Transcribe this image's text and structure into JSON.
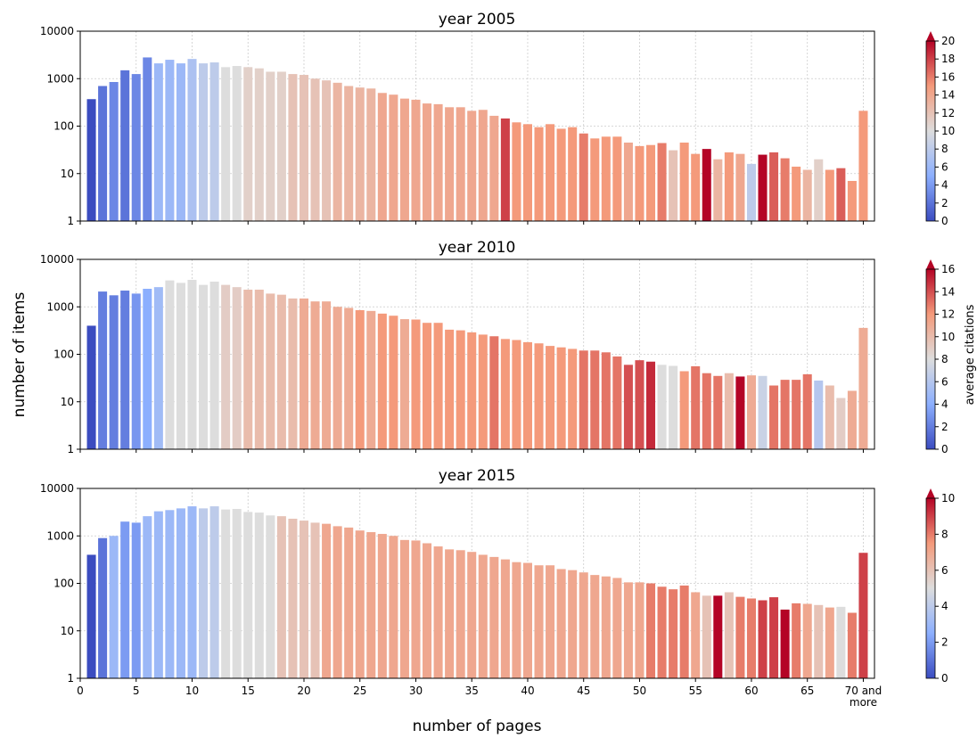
{
  "figure": {
    "ylabel": "number of items",
    "xlabel": "number of pages",
    "colorbar_label": "average citations",
    "x_last_tick_lines": [
      "70 and",
      "more"
    ]
  },
  "chart_data": [
    {
      "type": "bar",
      "title": "year 2005",
      "y_scale": "log",
      "ylim": [
        1,
        10000
      ],
      "y_ticks": [
        "1",
        "10",
        "100",
        "1000",
        "10000"
      ],
      "xlim": [
        0,
        71
      ],
      "x_ticks": [
        "0",
        "5",
        "10",
        "15",
        "20",
        "25",
        "30",
        "35",
        "40",
        "45",
        "50",
        "55",
        "60",
        "65",
        "70 and more"
      ],
      "grid": true,
      "colormap": "coolwarm",
      "color_range": [
        0,
        20
      ],
      "colorbar_ticks": [
        0,
        2,
        4,
        6,
        8,
        10,
        12,
        14,
        16,
        18,
        20
      ],
      "pages": [
        1,
        2,
        3,
        4,
        5,
        6,
        7,
        8,
        9,
        10,
        11,
        12,
        13,
        14,
        15,
        16,
        17,
        18,
        19,
        20,
        21,
        22,
        23,
        24,
        25,
        26,
        27,
        28,
        29,
        30,
        31,
        32,
        33,
        34,
        35,
        36,
        37,
        38,
        39,
        40,
        41,
        42,
        43,
        44,
        45,
        46,
        47,
        48,
        49,
        50,
        51,
        52,
        53,
        54,
        55,
        56,
        57,
        58,
        59,
        60,
        61,
        62,
        63,
        64,
        65,
        66,
        67,
        68,
        69,
        70
      ],
      "items": [
        370,
        700,
        850,
        1500,
        1250,
        2800,
        2100,
        2500,
        2100,
        2600,
        2100,
        2200,
        1750,
        1850,
        1750,
        1650,
        1400,
        1400,
        1250,
        1200,
        1000,
        920,
        820,
        700,
        650,
        620,
        500,
        460,
        380,
        360,
        300,
        290,
        250,
        250,
        210,
        220,
        165,
        145,
        120,
        110,
        95,
        110,
        88,
        95,
        70,
        55,
        60,
        60,
        45,
        38,
        40,
        44,
        31,
        45,
        26,
        33,
        20,
        28,
        26,
        16,
        25,
        28,
        21,
        14,
        12,
        20,
        12,
        13,
        7,
        210
      ],
      "avg_citations": [
        0,
        2,
        3,
        2,
        3,
        3,
        6,
        6,
        6,
        7,
        8,
        8,
        10,
        10,
        11,
        11,
        11,
        11,
        12,
        12,
        12,
        12,
        13,
        13,
        13,
        13,
        14,
        14,
        14,
        14,
        14,
        14,
        14,
        14,
        14,
        14,
        14,
        18,
        15,
        15,
        15,
        15,
        15,
        15,
        16,
        15,
        15,
        15,
        14,
        15,
        15,
        16,
        12,
        15,
        15,
        21,
        13,
        15,
        14,
        8,
        21,
        17,
        16,
        15,
        13,
        11,
        15,
        17,
        15,
        15
      ]
    },
    {
      "type": "bar",
      "title": "year 2010",
      "y_scale": "log",
      "ylim": [
        1,
        10000
      ],
      "y_ticks": [
        "1",
        "10",
        "100",
        "1000",
        "10000"
      ],
      "xlim": [
        0,
        71
      ],
      "x_ticks": [
        "0",
        "5",
        "10",
        "15",
        "20",
        "25",
        "30",
        "35",
        "40",
        "45",
        "50",
        "55",
        "60",
        "65",
        "70 and more"
      ],
      "grid": true,
      "colormap": "coolwarm",
      "color_range": [
        0,
        16
      ],
      "colorbar_ticks": [
        0,
        2,
        4,
        6,
        8,
        10,
        12,
        14,
        16
      ],
      "pages": [
        1,
        2,
        3,
        4,
        5,
        6,
        7,
        8,
        9,
        10,
        11,
        12,
        13,
        14,
        15,
        16,
        17,
        18,
        19,
        20,
        21,
        22,
        23,
        24,
        25,
        26,
        27,
        28,
        29,
        30,
        31,
        32,
        33,
        34,
        35,
        36,
        37,
        38,
        39,
        40,
        41,
        42,
        43,
        44,
        45,
        46,
        47,
        48,
        49,
        50,
        51,
        52,
        53,
        54,
        55,
        56,
        57,
        58,
        59,
        60,
        61,
        62,
        63,
        64,
        65,
        66,
        67,
        68,
        69,
        70
      ],
      "items": [
        400,
        2100,
        1750,
        2200,
        1900,
        2400,
        2600,
        3600,
        3200,
        3700,
        2900,
        3400,
        2900,
        2600,
        2300,
        2300,
        1900,
        1800,
        1500,
        1500,
        1300,
        1300,
        1000,
        950,
        850,
        820,
        720,
        650,
        550,
        540,
        460,
        460,
        330,
        320,
        290,
        260,
        240,
        210,
        200,
        180,
        170,
        150,
        140,
        130,
        120,
        120,
        110,
        90,
        60,
        75,
        70,
        60,
        57,
        44,
        56,
        40,
        35,
        40,
        34,
        36,
        35,
        22,
        29,
        29,
        38,
        28,
        22,
        12,
        17,
        360
      ],
      "avg_citations": [
        0,
        2,
        2,
        2,
        3,
        4,
        5,
        8,
        8,
        8,
        8,
        8,
        9,
        9,
        10,
        10,
        10,
        10,
        10,
        11,
        11,
        11,
        11,
        11,
        12,
        11,
        12,
        12,
        11,
        12,
        12,
        12,
        12,
        12,
        12,
        12,
        13,
        12,
        12,
        12,
        12,
        12,
        12,
        12,
        13,
        13,
        13,
        13,
        14,
        14,
        15,
        8,
        8,
        12,
        13,
        13,
        13,
        10,
        19,
        11,
        7,
        13,
        13,
        13,
        13,
        6,
        10,
        9,
        11,
        11
      ]
    },
    {
      "type": "bar",
      "title": "year 2015",
      "y_scale": "log",
      "ylim": [
        1,
        10000
      ],
      "y_ticks": [
        "1",
        "10",
        "100",
        "1000",
        "10000"
      ],
      "xlim": [
        0,
        71
      ],
      "x_ticks": [
        "0",
        "5",
        "10",
        "15",
        "20",
        "25",
        "30",
        "35",
        "40",
        "45",
        "50",
        "55",
        "60",
        "65",
        "70 and more"
      ],
      "grid": true,
      "colormap": "coolwarm",
      "color_range": [
        0,
        10
      ],
      "colorbar_ticks": [
        0,
        2,
        4,
        6,
        8,
        10
      ],
      "pages": [
        1,
        2,
        3,
        4,
        5,
        6,
        7,
        8,
        9,
        10,
        11,
        12,
        13,
        14,
        15,
        16,
        17,
        18,
        19,
        20,
        21,
        22,
        23,
        24,
        25,
        26,
        27,
        28,
        29,
        30,
        31,
        32,
        33,
        34,
        35,
        36,
        37,
        38,
        39,
        40,
        41,
        42,
        43,
        44,
        45,
        46,
        47,
        48,
        49,
        50,
        51,
        52,
        53,
        54,
        55,
        56,
        57,
        58,
        59,
        60,
        61,
        62,
        63,
        64,
        65,
        66,
        67,
        68,
        69,
        70
      ],
      "items": [
        400,
        900,
        1000,
        2000,
        1900,
        2600,
        3300,
        3500,
        3800,
        4200,
        3800,
        4200,
        3600,
        3700,
        3200,
        3100,
        2700,
        2600,
        2300,
        2100,
        1900,
        1800,
        1600,
        1500,
        1300,
        1200,
        1100,
        1000,
        820,
        800,
        700,
        600,
        520,
        500,
        460,
        400,
        360,
        320,
        280,
        270,
        240,
        240,
        200,
        190,
        170,
        150,
        140,
        130,
        105,
        105,
        100,
        85,
        75,
        90,
        65,
        55,
        55,
        65,
        52,
        48,
        44,
        51,
        28,
        38,
        37,
        35,
        31,
        32,
        24,
        440
      ],
      "avg_citations": [
        0,
        1,
        3,
        2,
        2,
        3,
        3,
        3,
        3,
        3,
        4,
        4,
        5,
        5,
        5,
        5,
        5,
        6,
        6,
        6,
        6,
        7,
        7,
        7,
        7,
        7,
        7,
        7,
        7,
        7,
        7,
        7,
        7,
        7,
        7,
        7,
        7,
        7,
        7,
        7,
        7,
        7,
        7,
        7,
        7,
        7,
        7,
        7,
        7,
        7,
        8,
        8,
        8,
        8,
        7,
        6,
        10,
        6,
        8,
        8,
        9,
        9,
        10,
        8,
        7,
        6,
        7,
        5,
        8,
        9
      ]
    }
  ]
}
